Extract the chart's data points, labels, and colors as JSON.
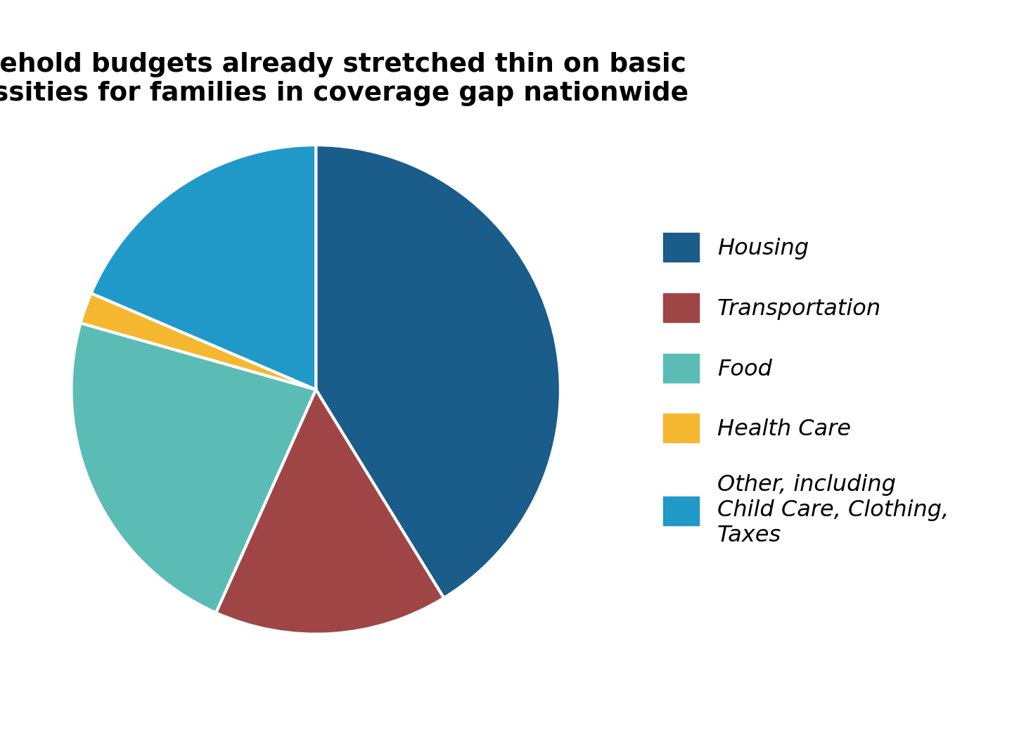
{
  "title": "Household budgets already stretched thin on basic\nnecessities for families in coverage gap nationwide",
  "slices": [
    {
      "label": "Housing",
      "value": 40,
      "color": "#1a5c8a"
    },
    {
      "label": "Transportation",
      "value": 15,
      "color": "#a04545"
    },
    {
      "label": "Food",
      "value": 22,
      "color": "#5bbcb5"
    },
    {
      "label": "Health Care",
      "value": 2,
      "color": "#f5b730"
    },
    {
      "label": "Other, including\nChild Care, Clothing,\nTaxes",
      "value": 18,
      "color": "#2099c8"
    }
  ],
  "startangle": 90,
  "background_color": "#ffffff",
  "title_fontsize": 27,
  "legend_fontsize": 23,
  "wedge_linewidth": 3,
  "wedge_edgecolor": "#ffffff"
}
